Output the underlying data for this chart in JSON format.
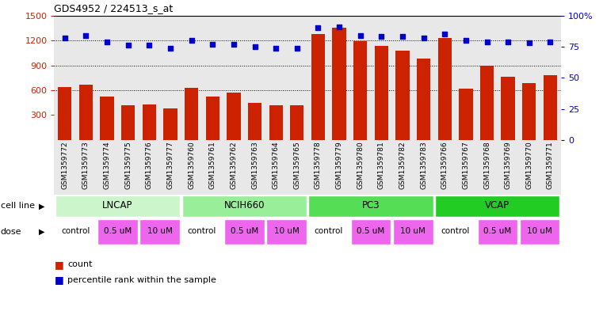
{
  "title": "GDS4952 / 224513_s_at",
  "samples": [
    "GSM1359772",
    "GSM1359773",
    "GSM1359774",
    "GSM1359775",
    "GSM1359776",
    "GSM1359777",
    "GSM1359760",
    "GSM1359761",
    "GSM1359762",
    "GSM1359763",
    "GSM1359764",
    "GSM1359765",
    "GSM1359778",
    "GSM1359779",
    "GSM1359780",
    "GSM1359781",
    "GSM1359782",
    "GSM1359783",
    "GSM1359766",
    "GSM1359767",
    "GSM1359768",
    "GSM1359769",
    "GSM1359770",
    "GSM1359771"
  ],
  "counts": [
    640,
    670,
    520,
    420,
    430,
    380,
    625,
    520,
    570,
    450,
    420,
    420,
    1280,
    1350,
    1190,
    1130,
    1080,
    980,
    1230,
    620,
    900,
    760,
    690,
    780
  ],
  "percentiles": [
    82,
    84,
    79,
    76,
    76,
    74,
    80,
    77,
    77,
    75,
    74,
    74,
    90,
    91,
    84,
    83,
    83,
    82,
    85,
    80,
    79,
    79,
    78,
    79
  ],
  "cell_lines": [
    "LNCAP",
    "NCIH660",
    "PC3",
    "VCAP"
  ],
  "cell_line_spans": [
    [
      0,
      6
    ],
    [
      6,
      12
    ],
    [
      12,
      18
    ],
    [
      18,
      24
    ]
  ],
  "cell_line_colors": [
    "#ccf5cc",
    "#99ee99",
    "#55dd55",
    "#22cc22"
  ],
  "doses": [
    {
      "label": "control",
      "span": [
        0,
        2
      ]
    },
    {
      "label": "0.5 uM",
      "span": [
        2,
        4
      ]
    },
    {
      "label": "10 uM",
      "span": [
        4,
        6
      ]
    },
    {
      "label": "control",
      "span": [
        6,
        8
      ]
    },
    {
      "label": "0.5 uM",
      "span": [
        8,
        10
      ]
    },
    {
      "label": "10 uM",
      "span": [
        10,
        12
      ]
    },
    {
      "label": "control",
      "span": [
        12,
        14
      ]
    },
    {
      "label": "0.5 uM",
      "span": [
        14,
        16
      ]
    },
    {
      "label": "10 uM",
      "span": [
        16,
        18
      ]
    },
    {
      "label": "control",
      "span": [
        18,
        20
      ]
    },
    {
      "label": "0.5 uM",
      "span": [
        20,
        22
      ]
    },
    {
      "label": "10 uM",
      "span": [
        22,
        24
      ]
    }
  ],
  "dose_color_map": {
    "control": "#ffffff",
    "0.5 uM": "#ee66ee",
    "10 uM": "#ee66ee"
  },
  "ylim_left": [
    0,
    1500
  ],
  "ylim_right": [
    0,
    100
  ],
  "yticks_left": [
    300,
    600,
    900,
    1200,
    1500
  ],
  "yticks_right": [
    0,
    25,
    50,
    75,
    100
  ],
  "bar_color": "#cc2200",
  "dot_color": "#0000cc",
  "bg_color": "#ffffff",
  "plot_bg": "#e8e8e8",
  "grid_color": "#000000"
}
